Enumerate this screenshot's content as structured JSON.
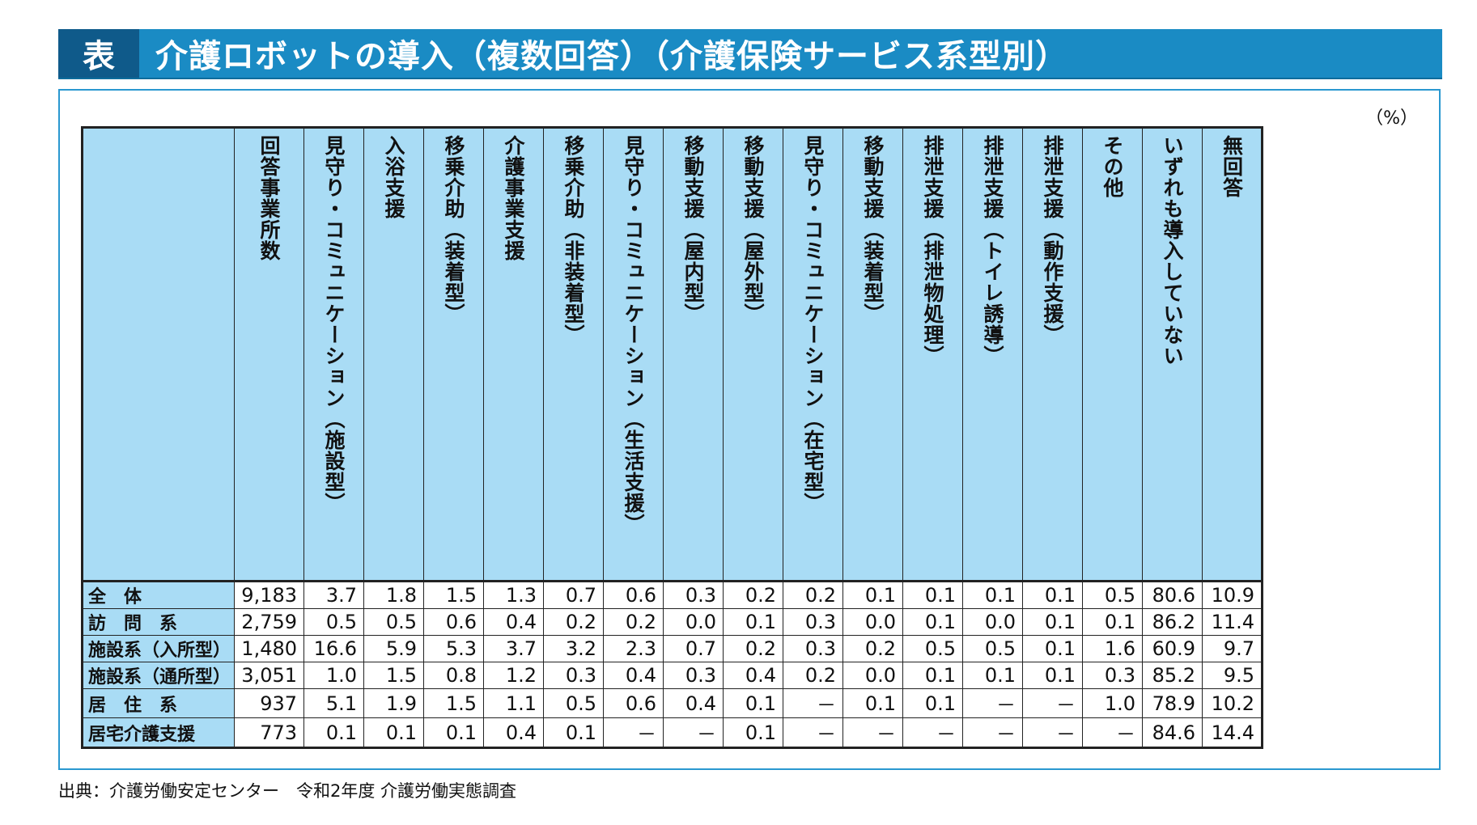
{
  "banner": {
    "tag": "表",
    "title": "介護ロボットの導入（複数回答）（介護保険サービス系型別）"
  },
  "unit": "（%）",
  "columns": [
    "回答事業所数",
    "見守り・コミュニケーション（施設型）",
    "入浴支援",
    "移乗介助（装着型）",
    "介護事業支援",
    "移乗介助（非装着型）",
    "見守り・コミュニケーション（生活支援）",
    "移動支援（屋内型）",
    "移動支援（屋外型）",
    "見守り・コミュニケーション（在宅型）",
    "移動支援（装着型）",
    "排泄支援（排泄物処理）",
    "排泄支援（トイレ誘導）",
    "排泄支援（動作支援）",
    "その他",
    "いずれも導入していない",
    "無回答"
  ],
  "rows": [
    {
      "label": "全　体",
      "values": [
        "9,183",
        "3.7",
        "1.8",
        "1.5",
        "1.3",
        "0.7",
        "0.6",
        "0.3",
        "0.2",
        "0.2",
        "0.1",
        "0.1",
        "0.1",
        "0.1",
        "0.5",
        "80.6",
        "10.9"
      ]
    },
    {
      "label": "訪　問　系",
      "values": [
        "2,759",
        "0.5",
        "0.5",
        "0.6",
        "0.4",
        "0.2",
        "0.2",
        "0.0",
        "0.1",
        "0.3",
        "0.0",
        "0.1",
        "0.0",
        "0.1",
        "0.1",
        "86.2",
        "11.4"
      ]
    },
    {
      "label": "施設系（入所型）",
      "values": [
        "1,480",
        "16.6",
        "5.9",
        "5.3",
        "3.7",
        "3.2",
        "2.3",
        "0.7",
        "0.2",
        "0.3",
        "0.2",
        "0.5",
        "0.5",
        "0.1",
        "1.6",
        "60.9",
        "9.7"
      ]
    },
    {
      "label": "施設系（通所型）",
      "values": [
        "3,051",
        "1.0",
        "1.5",
        "0.8",
        "1.2",
        "0.3",
        "0.4",
        "0.3",
        "0.4",
        "0.2",
        "0.0",
        "0.1",
        "0.1",
        "0.1",
        "0.3",
        "85.2",
        "9.5"
      ]
    },
    {
      "label": "居　住　系",
      "values": [
        "937",
        "5.1",
        "1.9",
        "1.5",
        "1.1",
        "0.5",
        "0.6",
        "0.4",
        "0.1",
        "－",
        "0.1",
        "0.1",
        "－",
        "－",
        "1.0",
        "78.9",
        "10.2"
      ]
    },
    {
      "label": "居宅介護支援",
      "values": [
        "773",
        "0.1",
        "0.1",
        "0.1",
        "0.4",
        "0.1",
        "－",
        "－",
        "0.1",
        "－",
        "－",
        "－",
        "－",
        "－",
        "－",
        "84.6",
        "14.4"
      ]
    }
  ],
  "source": "出典：介護労働安定センター　令和2年度 介護労働実態調査"
}
